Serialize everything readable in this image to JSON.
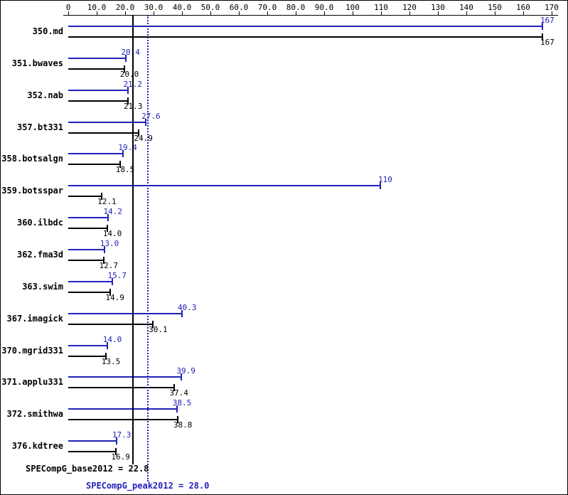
{
  "colors": {
    "peak": "#2222bb",
    "base": "#000000",
    "background": "#ffffff"
  },
  "chart_data": {
    "type": "bar",
    "orientation": "horizontal",
    "title": "",
    "xlabel": "",
    "ylabel": "",
    "xlim": [
      0,
      170
    ],
    "grid": false,
    "legend": "none",
    "x_tick_values": [
      0,
      10,
      20,
      30,
      40,
      50,
      60,
      70,
      80,
      90,
      100,
      110,
      120,
      130,
      140,
      150,
      160,
      170
    ],
    "x_tick_labels": [
      "0",
      "10.0",
      "20.0",
      "30.0",
      "40.0",
      "50.0",
      "60.0",
      "70.0",
      "80.0",
      "90.0",
      "100",
      "110",
      "120",
      "130",
      "140",
      "150",
      "160",
      "170"
    ],
    "categories": [
      "350.md",
      "351.bwaves",
      "352.nab",
      "357.bt331",
      "358.botsalgn",
      "359.botsspar",
      "360.ilbdc",
      "362.fma3d",
      "363.swim",
      "367.imagick",
      "370.mgrid331",
      "371.applu331",
      "372.smithwa",
      "376.kdtree"
    ],
    "series": [
      {
        "name": "SPECompG_peak2012",
        "color": "#2222bb",
        "values": [
          167,
          20.4,
          21.2,
          27.6,
          19.4,
          110,
          14.2,
          13.0,
          15.7,
          40.3,
          14.0,
          39.9,
          38.5,
          17.3
        ],
        "value_labels": [
          "167",
          "20.4",
          "21.2",
          "27.6",
          "19.4",
          "110",
          "14.2",
          "13.0",
          "15.7",
          "40.3",
          "14.0",
          "39.9",
          "38.5",
          "17.3"
        ]
      },
      {
        "name": "SPECompG_base2012",
        "color": "#000000",
        "values": [
          167,
          20.0,
          21.3,
          24.9,
          18.5,
          12.1,
          14.0,
          12.7,
          14.9,
          30.1,
          13.5,
          37.4,
          38.8,
          16.9
        ],
        "value_labels": [
          "167",
          "20.0",
          "21.3",
          "24.9",
          "18.5",
          "12.1",
          "14.0",
          "12.7",
          "14.9",
          "30.1",
          "13.5",
          "37.4",
          "38.8",
          "16.9"
        ]
      }
    ],
    "reference_lines": [
      {
        "name": "SPECompG_base2012",
        "value": 22.8,
        "style": "solid",
        "color": "#000000",
        "label": "SPECompG_base2012 = 22.8"
      },
      {
        "name": "SPECompG_peak2012",
        "value": 28.0,
        "style": "dotted",
        "color": "#2222bb",
        "label": "SPECompG_peak2012 = 28.0"
      }
    ]
  }
}
